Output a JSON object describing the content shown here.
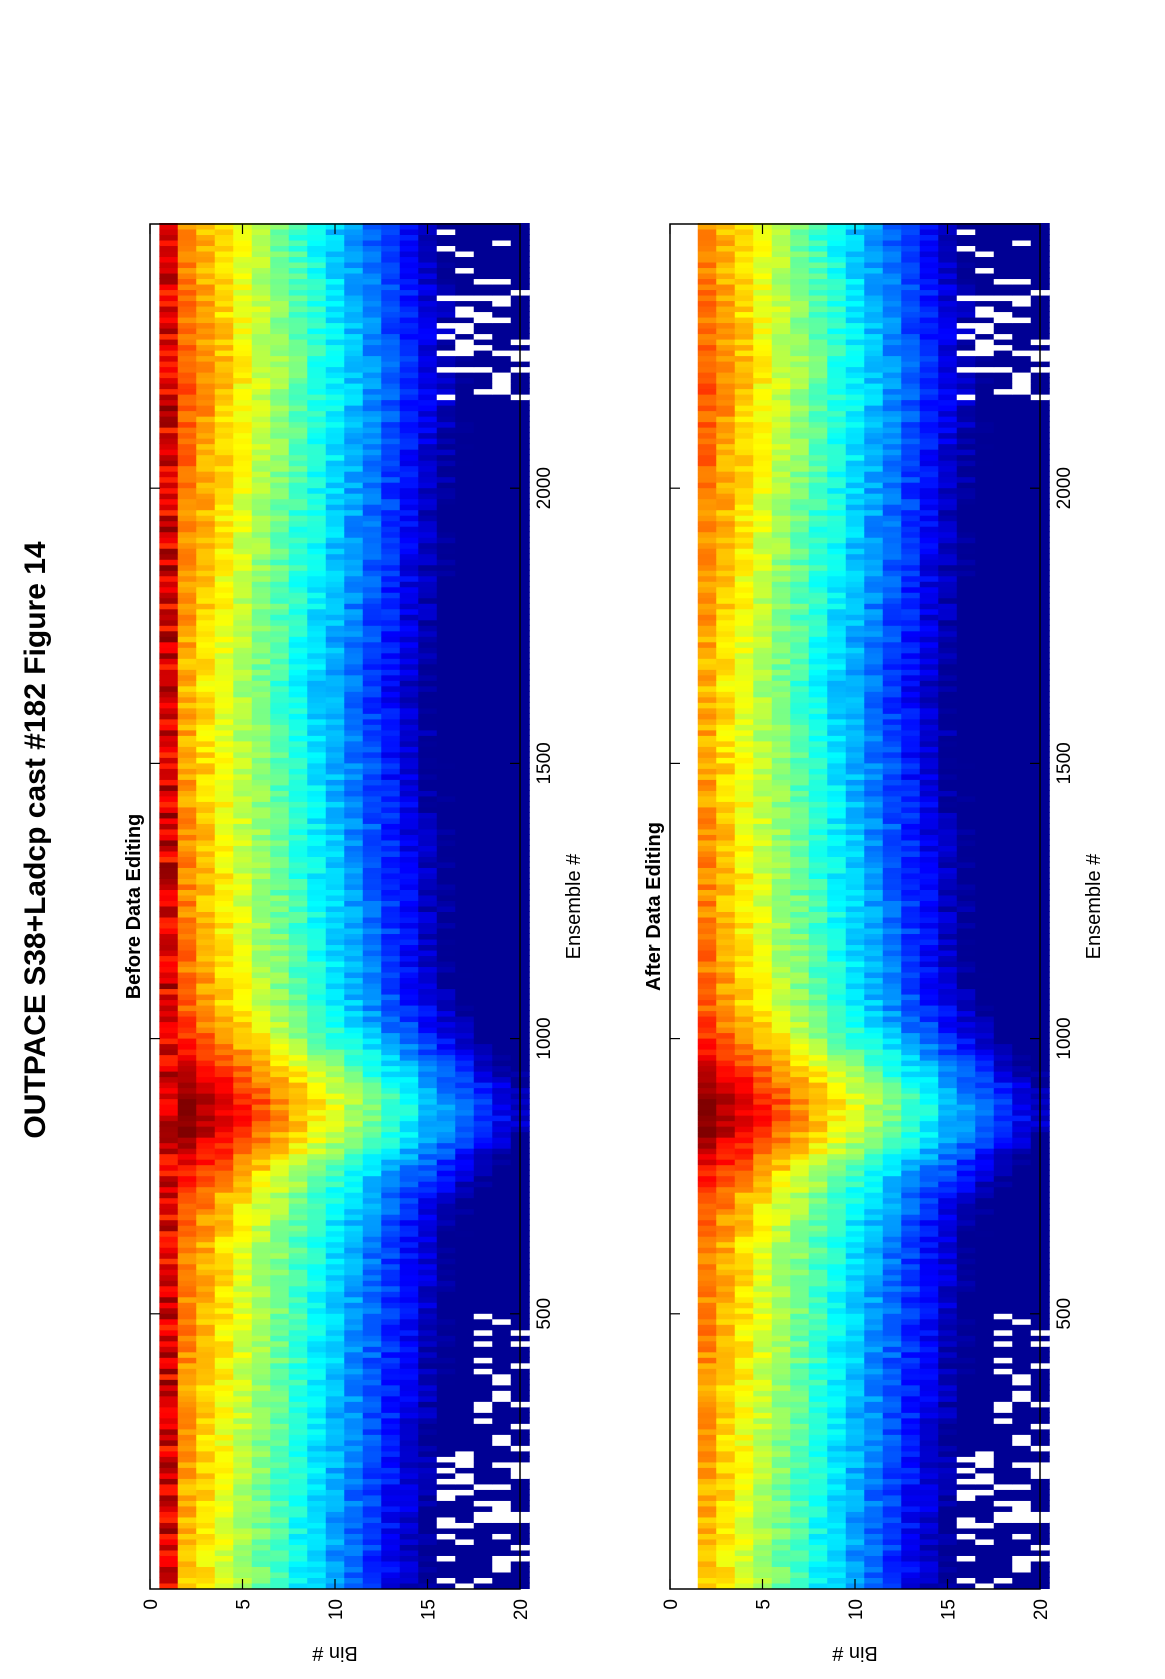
{
  "figure": {
    "title": "OUTPACE S38+Ladcp cast #182  Figure 14"
  },
  "chart_data": [
    {
      "type": "heatmap",
      "title": "Before Data Editing",
      "xlabel": "Ensemble #",
      "ylabel": "Bin #",
      "xlim": [
        0,
        2480
      ],
      "ylim": [
        0,
        20
      ],
      "x_ticks": [
        500,
        1000,
        1500,
        2000
      ],
      "y_ticks": [
        0,
        5,
        10,
        15,
        20
      ],
      "y_reversed": true,
      "colormap": "jet",
      "dropouts": [
        {
          "from": 0,
          "to": 250,
          "bin_from": 16
        },
        {
          "from": 250,
          "to": 500,
          "bin_from": 17.5
        },
        {
          "from": 2150,
          "to": 2480,
          "bin_from": 16
        }
      ]
    },
    {
      "type": "heatmap",
      "title": "After Data Editing",
      "xlabel": "Ensemble #",
      "ylabel": "Bin #",
      "xlim": [
        0,
        2480
      ],
      "ylim": [
        0,
        20
      ],
      "x_ticks": [
        500,
        1000,
        1500,
        2000
      ],
      "y_ticks": [
        0,
        5,
        10,
        15,
        20
      ],
      "y_reversed": true,
      "colormap": "jet",
      "dropouts": [
        {
          "from": 0,
          "to": 250,
          "bin_from": 16
        },
        {
          "from": 250,
          "to": 500,
          "bin_from": 17.5
        },
        {
          "from": 2150,
          "to": 2480,
          "bin_from": 16
        }
      ]
    }
  ]
}
